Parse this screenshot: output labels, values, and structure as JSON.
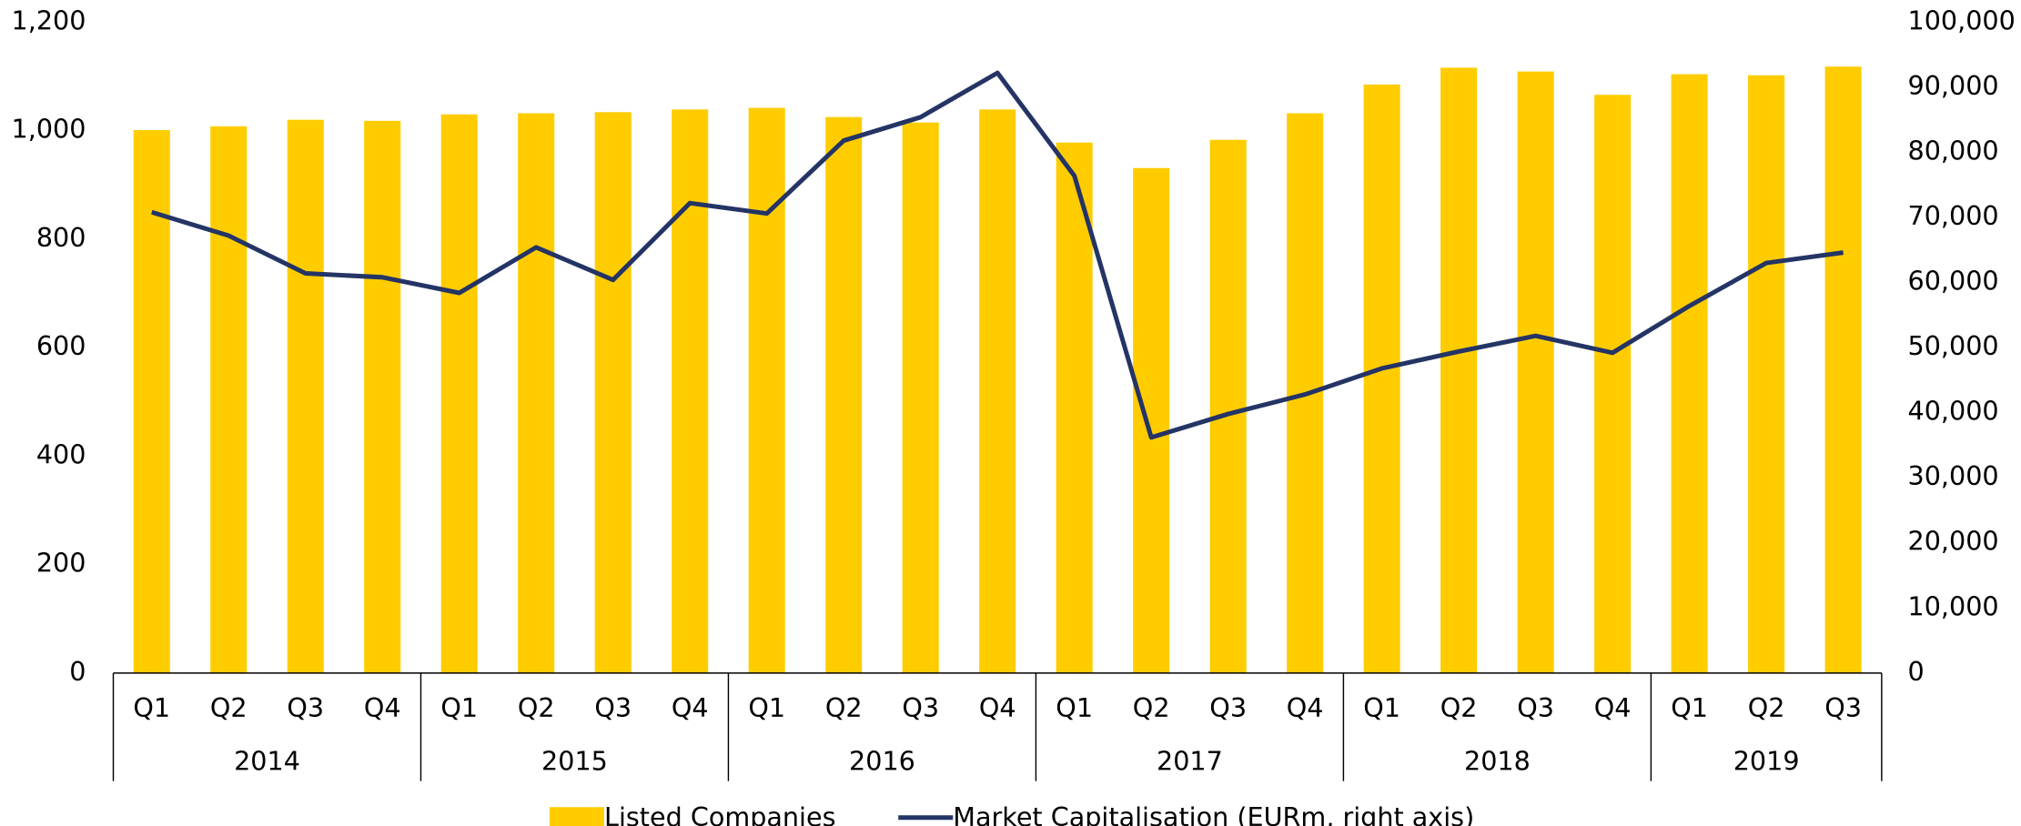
{
  "chart_data": {
    "type": "bar_line",
    "categories": [
      "Q1",
      "Q2",
      "Q3",
      "Q4",
      "Q1",
      "Q2",
      "Q3",
      "Q4",
      "Q1",
      "Q2",
      "Q3",
      "Q4",
      "Q1",
      "Q2",
      "Q3",
      "Q4",
      "Q1",
      "Q2",
      "Q3",
      "Q4",
      "Q1",
      "Q2",
      "Q3"
    ],
    "category_groups": [
      {
        "label": "2014",
        "span": 4
      },
      {
        "label": "2015",
        "span": 4
      },
      {
        "label": "2016",
        "span": 4
      },
      {
        "label": "2017",
        "span": 4
      },
      {
        "label": "2018",
        "span": 4
      },
      {
        "label": "2019",
        "span": 3
      }
    ],
    "series": [
      {
        "name": "Listed Companies",
        "type": "bar",
        "color": "#ffcc00",
        "axis": "y",
        "values": [
          1001,
          1008,
          1020,
          1018,
          1030,
          1032,
          1034,
          1039,
          1042,
          1025,
          1015,
          1039,
          978,
          931,
          983,
          1032,
          1085,
          1116,
          1109,
          1066,
          1104,
          1102,
          1118
        ]
      },
      {
        "name": "Market Capitalisation (EURm, right axis)",
        "type": "line",
        "color": "#243465",
        "axis": "y2",
        "values": [
          70800,
          67200,
          61400,
          60800,
          58400,
          65400,
          60400,
          72200,
          70600,
          81800,
          85400,
          92200,
          76400,
          36200,
          39800,
          42800,
          46800,
          49400,
          51800,
          49200,
          56400,
          63000,
          64600
        ]
      }
    ],
    "ylim": [
      0,
      1200
    ],
    "yticks": [
      0,
      200,
      400,
      600,
      800,
      {
        "value": 1000,
        "label": "1,000"
      },
      {
        "value": 1200,
        "label": "1,200"
      }
    ],
    "y2lim": [
      0,
      100000
    ],
    "y2ticks": [
      0,
      {
        "value": 10000,
        "label": "10,000"
      },
      {
        "value": 20000,
        "label": "20,000"
      },
      {
        "value": 30000,
        "label": "30,000"
      },
      {
        "value": 40000,
        "label": "40,000"
      },
      {
        "value": 50000,
        "label": "50,000"
      },
      {
        "value": 60000,
        "label": "60,000"
      },
      {
        "value": 70000,
        "label": "70,000"
      },
      {
        "value": 80000,
        "label": "80,000"
      },
      {
        "value": 90000,
        "label": "90,000"
      },
      {
        "value": 100000,
        "label": "100,000"
      }
    ],
    "grid": false,
    "legend": "bottom"
  }
}
